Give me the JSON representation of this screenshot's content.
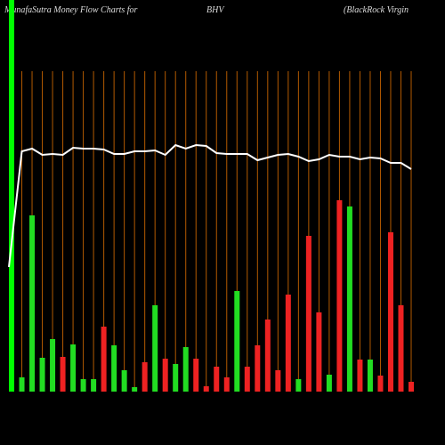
{
  "chart_data": {
    "type": "bar",
    "title": "MunafaSutra  Money Flow  Charts for",
    "ticker": "BHV",
    "subtitle": "(BlackRock Virgin",
    "ylim": [
      0,
      440
    ],
    "series": [
      {
        "colors": [
          "#00ff00",
          "#22dd22",
          "#22dd22",
          "#22dd22",
          "#22dd22",
          "#ee2222",
          "#22dd22",
          "#22dd22",
          "#22dd22",
          "#ee2222",
          "#22dd22",
          "#22dd22",
          "#22dd22",
          "#ee2222",
          "#22dd22",
          "#ee2222",
          "#22dd22",
          "#22dd22",
          "#ee2222",
          "#ee2222",
          "#ee2222",
          "#ee2222",
          "#22dd22",
          "#ee2222",
          "#ee2222",
          "#ee2222",
          "#ee2222",
          "#ee2222",
          "#22dd22",
          "#ee2222",
          "#ee2222",
          "#22dd22",
          "#ee2222",
          "#22dd22",
          "#ee2222",
          "#22dd22",
          "#ee2222",
          "#ee2222",
          "#ee2222",
          "#ee2222"
        ],
        "values": [
          440,
          16,
          198,
          38,
          59,
          39,
          53,
          14,
          14,
          73,
          52,
          24,
          5,
          33,
          97,
          37,
          31,
          50,
          37,
          6,
          28,
          16,
          113,
          28,
          52,
          81,
          24,
          109,
          14,
          175,
          89,
          19,
          215,
          208,
          36,
          36,
          18,
          179,
          97,
          11
        ]
      },
      {
        "type": "line",
        "color": "#ffffff",
        "values": [
          140,
          270,
          273,
          266,
          267,
          266,
          274,
          273,
          273,
          272,
          267,
          267,
          270,
          270,
          271,
          266,
          277,
          273,
          277,
          276,
          268,
          267,
          267,
          267,
          260,
          263,
          266,
          267,
          264,
          259,
          261,
          266,
          264,
          264,
          261,
          263,
          262,
          257,
          257,
          250
        ]
      }
    ]
  }
}
